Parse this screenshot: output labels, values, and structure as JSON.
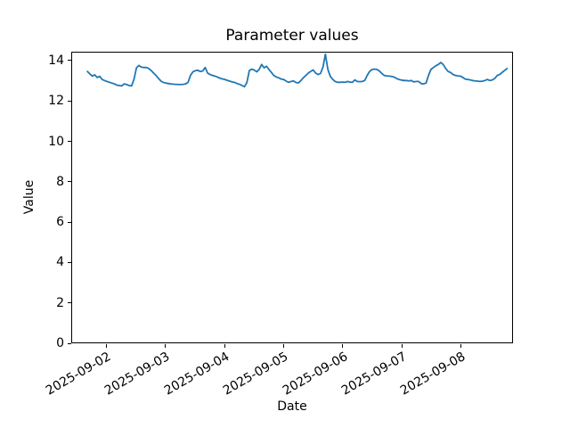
{
  "chart_data": {
    "type": "line",
    "title": "Parameter values",
    "xlabel": "Date",
    "ylabel": "Value",
    "legend": "none",
    "grid": false,
    "background_color": "#ffffff",
    "line_color": "#1f77b4",
    "axis_color": "#000000",
    "ylim": [
      0,
      14.44
    ],
    "yticks": [
      0,
      2,
      4,
      6,
      8,
      10,
      12,
      14
    ],
    "ytick_labels": [
      "0",
      "2",
      "4",
      "6",
      "8",
      "10",
      "12",
      "14"
    ],
    "xlim_days": [
      0.408,
      7.878
    ],
    "xtick_days": [
      1,
      2,
      3,
      4,
      5,
      6,
      7
    ],
    "xtick_labels": [
      "2025-09-02",
      "2025-09-03",
      "2025-09-04",
      "2025-09-05",
      "2025-09-06",
      "2025-09-07",
      "2025-09-08"
    ],
    "x_start": "2025-09-01 16:00",
    "x_start_day_offset": 0.6667,
    "x_step_days": 0.0416667,
    "values": [
      13.5,
      13.38,
      13.27,
      13.33,
      13.2,
      13.26,
      13.1,
      13.05,
      13.0,
      12.96,
      12.92,
      12.88,
      12.82,
      12.8,
      12.78,
      12.88,
      12.85,
      12.8,
      12.78,
      13.1,
      13.68,
      13.8,
      13.72,
      13.7,
      13.7,
      13.65,
      13.55,
      13.42,
      13.3,
      13.15,
      13.02,
      12.95,
      12.92,
      12.9,
      12.88,
      12.87,
      12.86,
      12.85,
      12.85,
      12.86,
      12.88,
      12.95,
      13.3,
      13.48,
      13.54,
      13.56,
      13.5,
      13.52,
      13.7,
      13.42,
      13.35,
      13.3,
      13.27,
      13.22,
      13.17,
      13.13,
      13.1,
      13.06,
      13.02,
      12.98,
      12.95,
      12.9,
      12.86,
      12.8,
      12.74,
      12.95,
      13.55,
      13.62,
      13.57,
      13.48,
      13.6,
      13.85,
      13.68,
      13.76,
      13.6,
      13.45,
      13.3,
      13.22,
      13.18,
      13.12,
      13.1,
      13.02,
      12.96,
      13.0,
      13.03,
      12.95,
      12.93,
      13.05,
      13.18,
      13.3,
      13.42,
      13.5,
      13.58,
      13.42,
      13.35,
      13.4,
      13.72,
      14.36,
      13.6,
      13.25,
      13.1,
      13.0,
      12.96,
      12.96,
      12.97,
      12.96,
      13.0,
      12.97,
      12.96,
      13.08,
      13.0,
      12.99,
      13.0,
      13.05,
      13.3,
      13.5,
      13.6,
      13.62,
      13.6,
      13.52,
      13.4,
      13.3,
      13.28,
      13.27,
      13.25,
      13.22,
      13.15,
      13.1,
      13.07,
      13.05,
      13.05,
      13.03,
      13.05,
      12.98,
      13.0,
      13.0,
      12.9,
      12.88,
      12.92,
      13.3,
      13.6,
      13.7,
      13.78,
      13.85,
      13.95,
      13.85,
      13.65,
      13.5,
      13.45,
      13.35,
      13.3,
      13.28,
      13.27,
      13.2,
      13.12,
      13.1,
      13.08,
      13.05,
      13.03,
      13.02,
      13.0,
      13.02,
      13.05,
      13.1,
      13.05,
      13.08,
      13.15,
      13.3,
      13.35,
      13.45,
      13.55,
      13.65
    ]
  }
}
